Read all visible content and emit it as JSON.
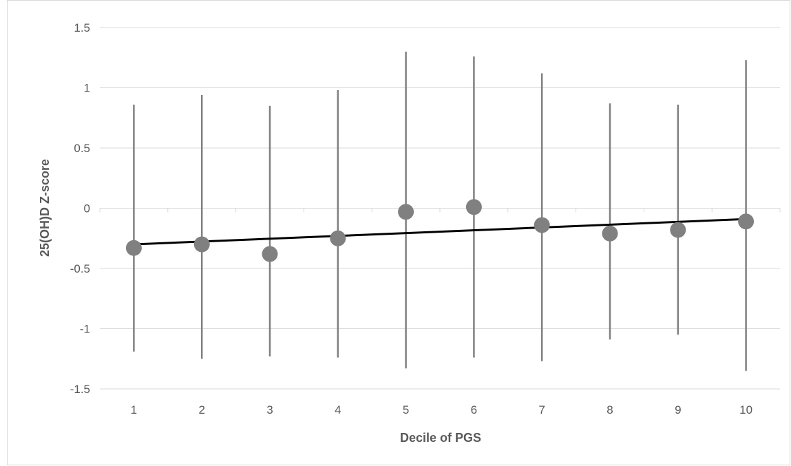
{
  "chart_data": {
    "type": "scatter",
    "title": "",
    "xlabel": "Decile of PGS",
    "ylabel": "25(OH)D Z-score",
    "x": [
      1,
      2,
      3,
      4,
      5,
      6,
      7,
      8,
      9,
      10
    ],
    "y_ticks": [
      "-1.5",
      "-1",
      "-0.5",
      "0",
      "0.5",
      "1",
      "1.5"
    ],
    "ylim": [
      -1.5,
      1.5
    ],
    "grid": true,
    "legend": "none",
    "series": [
      {
        "values": [
          -0.33,
          -0.3,
          -0.38,
          -0.25,
          -0.03,
          0.01,
          -0.14,
          -0.21,
          -0.18,
          -0.11
        ],
        "error_upper": [
          0.86,
          0.94,
          0.85,
          0.98,
          1.3,
          1.26,
          1.12,
          0.87,
          0.86,
          1.23
        ],
        "error_lower": [
          -1.19,
          -1.25,
          -1.23,
          -1.24,
          -1.33,
          -1.24,
          -1.27,
          -1.09,
          -1.05,
          -1.35
        ],
        "color": "#808080"
      }
    ],
    "trendline": {
      "type": "linear",
      "start": [
        1,
        -0.3
      ],
      "end": [
        10,
        -0.09
      ],
      "color": "#000000"
    }
  }
}
